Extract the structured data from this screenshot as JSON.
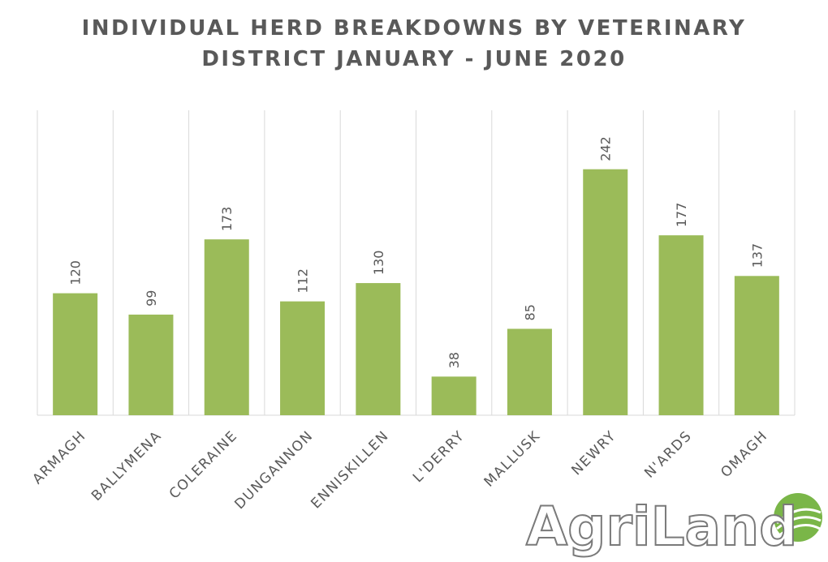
{
  "chart_data": {
    "type": "bar",
    "title": "INDIVIDUAL HERD BREAKDOWNS BY VETERINARY",
    "subtitle": "DISTRICT JANUARY - JUNE 2020",
    "categories": [
      "ARMAGH",
      "BALLYMENA",
      "COLERAINE",
      "DUNGANNON",
      "ENNISKILLEN",
      "L'DERRY",
      "MALLUSK",
      "NEWRY",
      "N'ARDS",
      "OMAGH"
    ],
    "values": [
      120,
      99,
      173,
      112,
      130,
      38,
      85,
      242,
      177,
      137
    ],
    "color": "#9bbb59",
    "ylim": [
      0,
      300
    ],
    "watermark": "AgriLand"
  }
}
